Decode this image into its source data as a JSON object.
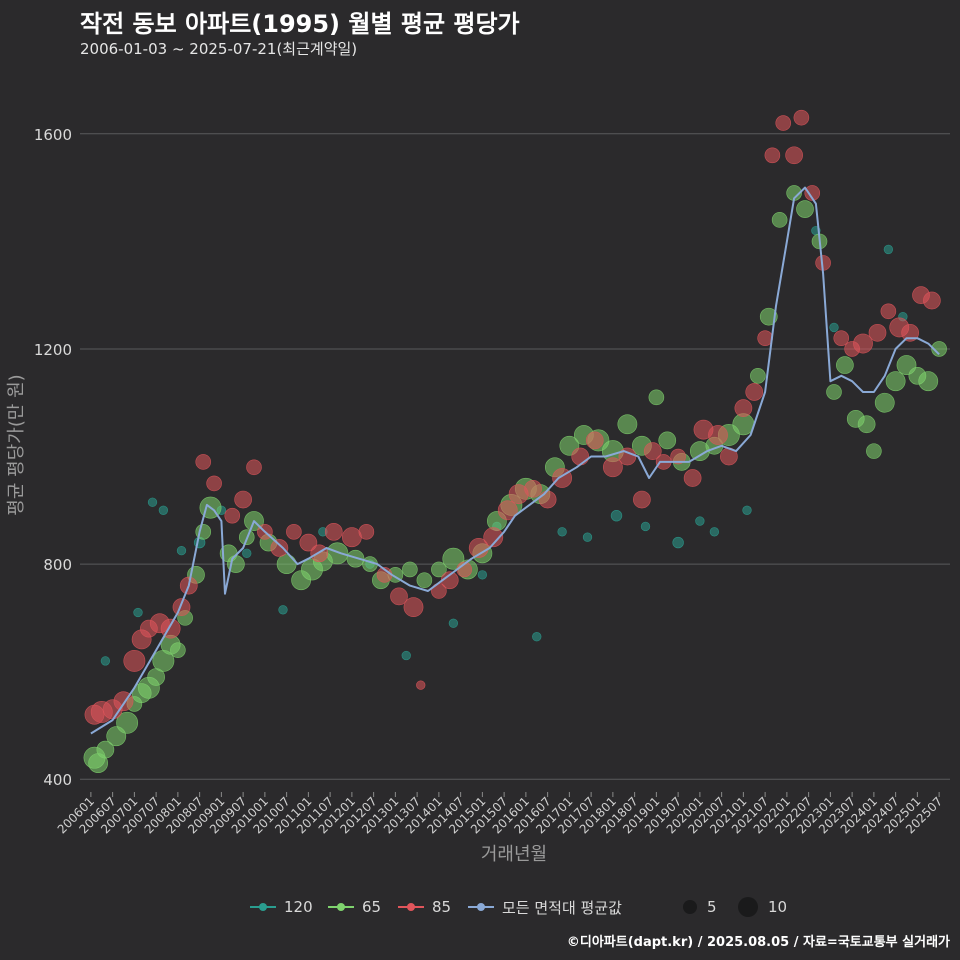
{
  "title": "작전 동보 아파트(1995) 월별 평균 평당가",
  "subtitle": "2006-01-03 ~ 2025-07-21(최근계약일)",
  "caption": "©디아파트(dapt.kr) / 2025.08.05 / 자료=국토교통부 실거래가",
  "colors": {
    "background": "#2b2a2c",
    "grid": "#5a5a5c",
    "s120": "#2a9d8f",
    "s65": "#7fd36e",
    "s85": "#e0555b",
    "avg": "#8aa9d6"
  },
  "legend": {
    "series_120": "120",
    "series_65": "65",
    "series_85": "85",
    "series_avg": "모든 면적대 평균값",
    "size_small": "5",
    "size_large": "10"
  },
  "chart_data": {
    "type": "scatter",
    "title": "작전 동보 아파트(1995) 월별 평균 평당가",
    "subtitle": "2006-01-03 ~ 2025-07-21(최근계약일)",
    "xlabel": "거래년월",
    "ylabel": "평균 평당가(만 원)",
    "ylim": [
      380,
      1700
    ],
    "yticks": [
      400,
      800,
      1200,
      1600
    ],
    "xticks": [
      "200601",
      "200607",
      "200701",
      "200707",
      "200801",
      "200807",
      "200901",
      "200907",
      "201001",
      "201007",
      "201101",
      "201107",
      "201201",
      "201207",
      "201301",
      "201307",
      "201401",
      "201407",
      "201501",
      "201507",
      "201601",
      "201607",
      "201701",
      "201707",
      "201801",
      "201807",
      "201901",
      "201907",
      "202001",
      "202007",
      "202101",
      "202107",
      "202201",
      "202207",
      "202301",
      "202307",
      "202401",
      "202407",
      "202501",
      "202507"
    ],
    "x_range": [
      "2005-10",
      "2025-10"
    ],
    "grid": true,
    "size_legend": [
      5,
      10
    ],
    "avg_line": {
      "name": "모든 면적대 평균값",
      "points": [
        [
          "2006-01",
          485
        ],
        [
          "2006-07",
          510
        ],
        [
          "2007-01",
          570
        ],
        [
          "2007-07",
          640
        ],
        [
          "2008-01",
          710
        ],
        [
          "2008-04",
          760
        ],
        [
          "2008-07",
          860
        ],
        [
          "2008-09",
          910
        ],
        [
          "2008-11",
          900
        ],
        [
          "2009-01",
          880
        ],
        [
          "2009-02",
          745
        ],
        [
          "2009-04",
          810
        ],
        [
          "2009-07",
          830
        ],
        [
          "2009-10",
          880
        ],
        [
          "2010-01",
          860
        ],
        [
          "2010-06",
          830
        ],
        [
          "2010-10",
          800
        ],
        [
          "2011-01",
          810
        ],
        [
          "2011-06",
          830
        ],
        [
          "2011-10",
          820
        ],
        [
          "2012-03",
          810
        ],
        [
          "2012-08",
          800
        ],
        [
          "2012-12",
          780
        ],
        [
          "2013-05",
          760
        ],
        [
          "2013-10",
          750
        ],
        [
          "2014-02",
          770
        ],
        [
          "2014-06",
          790
        ],
        [
          "2014-10",
          810
        ],
        [
          "2015-03",
          830
        ],
        [
          "2015-07",
          860
        ],
        [
          "2015-10",
          890
        ],
        [
          "2016-02",
          910
        ],
        [
          "2016-06",
          930
        ],
        [
          "2016-10",
          960
        ],
        [
          "2017-03",
          980
        ],
        [
          "2017-07",
          1000
        ],
        [
          "2017-11",
          1000
        ],
        [
          "2018-04",
          1010
        ],
        [
          "2018-08",
          1000
        ],
        [
          "2018-11",
          960
        ],
        [
          "2019-02",
          990
        ],
        [
          "2019-06",
          990
        ],
        [
          "2019-10",
          990
        ],
        [
          "2020-03",
          1010
        ],
        [
          "2020-07",
          1020
        ],
        [
          "2020-11",
          1010
        ],
        [
          "2021-03",
          1040
        ],
        [
          "2021-07",
          1120
        ],
        [
          "2021-10",
          1280
        ],
        [
          "2022-01",
          1400
        ],
        [
          "2022-03",
          1480
        ],
        [
          "2022-06",
          1500
        ],
        [
          "2022-09",
          1470
        ],
        [
          "2022-11",
          1340
        ],
        [
          "2023-01",
          1140
        ],
        [
          "2023-04",
          1150
        ],
        [
          "2023-07",
          1140
        ],
        [
          "2023-10",
          1120
        ],
        [
          "2024-01",
          1120
        ],
        [
          "2024-04",
          1150
        ],
        [
          "2024-07",
          1200
        ],
        [
          "2024-10",
          1220
        ],
        [
          "2025-01",
          1220
        ],
        [
          "2025-04",
          1210
        ],
        [
          "2025-07",
          1190
        ]
      ]
    },
    "series": [
      {
        "name": "120",
        "points": [
          [
            "2006-05",
            620,
            3
          ],
          [
            "2007-02",
            710,
            3
          ],
          [
            "2007-06",
            915,
            3
          ],
          [
            "2007-09",
            900,
            3
          ],
          [
            "2008-02",
            825,
            3
          ],
          [
            "2008-07",
            840,
            4
          ],
          [
            "2009-01",
            900,
            3
          ],
          [
            "2009-08",
            820,
            3
          ],
          [
            "2010-06",
            715,
            3
          ],
          [
            "2011-05",
            860,
            3
          ],
          [
            "2012-06",
            800,
            3
          ],
          [
            "2013-04",
            630,
            3
          ],
          [
            "2014-05",
            690,
            3
          ],
          [
            "2015-01",
            780,
            3
          ],
          [
            "2015-05",
            870,
            3
          ],
          [
            "2016-04",
            665,
            3
          ],
          [
            "2016-11",
            860,
            3
          ],
          [
            "2017-06",
            850,
            3
          ],
          [
            "2018-02",
            890,
            4
          ],
          [
            "2018-10",
            870,
            3
          ],
          [
            "2019-07",
            840,
            4
          ],
          [
            "2020-01",
            880,
            3
          ],
          [
            "2020-05",
            860,
            3
          ],
          [
            "2021-02",
            900,
            3
          ],
          [
            "2022-09",
            1420,
            3
          ],
          [
            "2023-02",
            1240,
            3
          ],
          [
            "2024-05",
            1385,
            3
          ],
          [
            "2024-09",
            1260,
            3
          ]
        ]
      },
      {
        "name": "65",
        "points": [
          [
            "2006-02",
            440,
            9
          ],
          [
            "2006-03",
            430,
            8
          ],
          [
            "2006-05",
            455,
            7
          ],
          [
            "2006-08",
            480,
            8
          ],
          [
            "2006-11",
            505,
            9
          ],
          [
            "2007-01",
            540,
            6
          ],
          [
            "2007-03",
            560,
            8
          ],
          [
            "2007-05",
            570,
            9
          ],
          [
            "2007-07",
            590,
            7
          ],
          [
            "2007-09",
            620,
            9
          ],
          [
            "2007-11",
            650,
            8
          ],
          [
            "2008-01",
            640,
            6
          ],
          [
            "2008-03",
            700,
            6
          ],
          [
            "2008-06",
            780,
            7
          ],
          [
            "2008-08",
            860,
            6
          ],
          [
            "2008-10",
            905,
            9
          ],
          [
            "2009-03",
            820,
            7
          ],
          [
            "2009-05",
            800,
            7
          ],
          [
            "2009-08",
            850,
            6
          ],
          [
            "2009-10",
            880,
            8
          ],
          [
            "2010-02",
            840,
            7
          ],
          [
            "2010-07",
            800,
            8
          ],
          [
            "2010-11",
            770,
            8
          ],
          [
            "2011-02",
            790,
            9
          ],
          [
            "2011-05",
            805,
            8
          ],
          [
            "2011-09",
            820,
            9
          ],
          [
            "2012-02",
            810,
            7
          ],
          [
            "2012-06",
            800,
            6
          ],
          [
            "2012-09",
            770,
            7
          ],
          [
            "2013-01",
            780,
            6
          ],
          [
            "2013-05",
            790,
            6
          ],
          [
            "2013-09",
            770,
            6
          ],
          [
            "2014-01",
            790,
            6
          ],
          [
            "2014-05",
            810,
            9
          ],
          [
            "2014-09",
            790,
            8
          ],
          [
            "2015-01",
            820,
            8
          ],
          [
            "2015-05",
            880,
            8
          ],
          [
            "2015-09",
            910,
            9
          ],
          [
            "2016-01",
            940,
            9
          ],
          [
            "2016-05",
            930,
            8
          ],
          [
            "2016-09",
            980,
            8
          ],
          [
            "2017-01",
            1020,
            8
          ],
          [
            "2017-05",
            1040,
            8
          ],
          [
            "2017-09",
            1030,
            9
          ],
          [
            "2018-01",
            1010,
            9
          ],
          [
            "2018-05",
            1060,
            8
          ],
          [
            "2018-09",
            1020,
            8
          ],
          [
            "2019-01",
            1110,
            6
          ],
          [
            "2019-04",
            1030,
            7
          ],
          [
            "2019-08",
            990,
            7
          ],
          [
            "2020-01",
            1010,
            8
          ],
          [
            "2020-05",
            1020,
            7
          ],
          [
            "2020-09",
            1040,
            9
          ],
          [
            "2021-01",
            1060,
            9
          ],
          [
            "2021-05",
            1150,
            6
          ],
          [
            "2021-08",
            1260,
            7
          ],
          [
            "2021-11",
            1440,
            6
          ],
          [
            "2022-03",
            1490,
            6
          ],
          [
            "2022-06",
            1460,
            7
          ],
          [
            "2022-10",
            1400,
            6
          ],
          [
            "2023-02",
            1120,
            6
          ],
          [
            "2023-05",
            1170,
            7
          ],
          [
            "2023-08",
            1070,
            7
          ],
          [
            "2023-11",
            1060,
            7
          ],
          [
            "2024-01",
            1010,
            6
          ],
          [
            "2024-04",
            1100,
            8
          ],
          [
            "2024-07",
            1140,
            8
          ],
          [
            "2024-10",
            1170,
            8
          ],
          [
            "2025-01",
            1150,
            7
          ],
          [
            "2025-04",
            1140,
            8
          ],
          [
            "2025-07",
            1200,
            6
          ]
        ]
      },
      {
        "name": "85",
        "points": [
          [
            "2006-02",
            520,
            8
          ],
          [
            "2006-04",
            525,
            9
          ],
          [
            "2006-07",
            530,
            8
          ],
          [
            "2006-10",
            545,
            8
          ],
          [
            "2007-01",
            620,
            9
          ],
          [
            "2007-03",
            660,
            8
          ],
          [
            "2007-05",
            680,
            7
          ],
          [
            "2007-08",
            690,
            8
          ],
          [
            "2007-11",
            680,
            8
          ],
          [
            "2008-02",
            720,
            7
          ],
          [
            "2008-04",
            760,
            7
          ],
          [
            "2008-08",
            990,
            6
          ],
          [
            "2008-11",
            950,
            6
          ],
          [
            "2009-04",
            890,
            6
          ],
          [
            "2009-07",
            920,
            7
          ],
          [
            "2009-10",
            980,
            6
          ],
          [
            "2010-01",
            860,
            6
          ],
          [
            "2010-05",
            830,
            7
          ],
          [
            "2010-09",
            860,
            6
          ],
          [
            "2011-01",
            840,
            7
          ],
          [
            "2011-04",
            820,
            7
          ],
          [
            "2011-08",
            860,
            7
          ],
          [
            "2012-01",
            850,
            8
          ],
          [
            "2012-05",
            860,
            6
          ],
          [
            "2012-10",
            780,
            6
          ],
          [
            "2013-02",
            740,
            7
          ],
          [
            "2013-06",
            720,
            8
          ],
          [
            "2013-08",
            575,
            3
          ],
          [
            "2014-01",
            750,
            6
          ],
          [
            "2014-04",
            770,
            7
          ],
          [
            "2014-08",
            790,
            6
          ],
          [
            "2014-12",
            830,
            8
          ],
          [
            "2015-04",
            850,
            8
          ],
          [
            "2015-08",
            900,
            8
          ],
          [
            "2015-11",
            930,
            8
          ],
          [
            "2016-03",
            940,
            7
          ],
          [
            "2016-07",
            920,
            7
          ],
          [
            "2016-11",
            960,
            8
          ],
          [
            "2017-04",
            1000,
            7
          ],
          [
            "2017-08",
            1030,
            7
          ],
          [
            "2018-01",
            980,
            8
          ],
          [
            "2018-05",
            1000,
            7
          ],
          [
            "2018-09",
            920,
            7
          ],
          [
            "2018-12",
            1010,
            7
          ],
          [
            "2019-03",
            990,
            6
          ],
          [
            "2019-07",
            1000,
            6
          ],
          [
            "2019-11",
            960,
            7
          ],
          [
            "2020-02",
            1050,
            8
          ],
          [
            "2020-06",
            1040,
            8
          ],
          [
            "2020-09",
            1000,
            7
          ],
          [
            "2021-01",
            1090,
            7
          ],
          [
            "2021-04",
            1120,
            7
          ],
          [
            "2021-07",
            1220,
            6
          ],
          [
            "2021-09",
            1560,
            6
          ],
          [
            "2021-12",
            1620,
            6
          ],
          [
            "2022-03",
            1560,
            7
          ],
          [
            "2022-05",
            1630,
            6
          ],
          [
            "2022-08",
            1490,
            6
          ],
          [
            "2022-11",
            1360,
            6
          ],
          [
            "2023-04",
            1220,
            6
          ],
          [
            "2023-07",
            1200,
            6
          ],
          [
            "2023-10",
            1210,
            8
          ],
          [
            "2024-02",
            1230,
            7
          ],
          [
            "2024-05",
            1270,
            6
          ],
          [
            "2024-08",
            1240,
            8
          ],
          [
            "2024-11",
            1230,
            7
          ],
          [
            "2025-02",
            1300,
            7
          ],
          [
            "2025-05",
            1290,
            7
          ]
        ]
      }
    ]
  }
}
